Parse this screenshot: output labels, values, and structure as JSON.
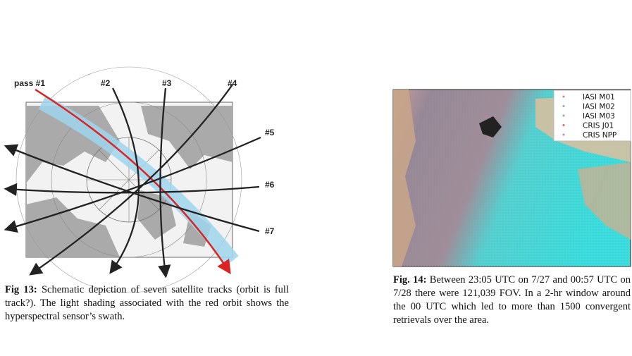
{
  "figure_13": {
    "labels": [
      "pass #1",
      "#2",
      "#3",
      "#4",
      "#5",
      "#6",
      "#7"
    ],
    "caption": {
      "label": "Fig 13:",
      "text": "Schematic depiction of seven satellite tracks (orbit is full track?). The light shading associated with the red orbit shows the hyperspectral sensor’s swath."
    }
  },
  "figure_14": {
    "legend": [
      "IASI M01",
      "IASI M02",
      "IASI M03",
      "CRIS J01",
      "CRIS NPP"
    ],
    "caption": {
      "label": "Fig. 14:",
      "text": "Between 23:05 UTC on 7/27 and 00:57 UTC on 7/28 there were 121,039 FOV. In a 2-hr window around the 00 UTC which led to more than 1500 convergent retrievals over the area."
    }
  }
}
